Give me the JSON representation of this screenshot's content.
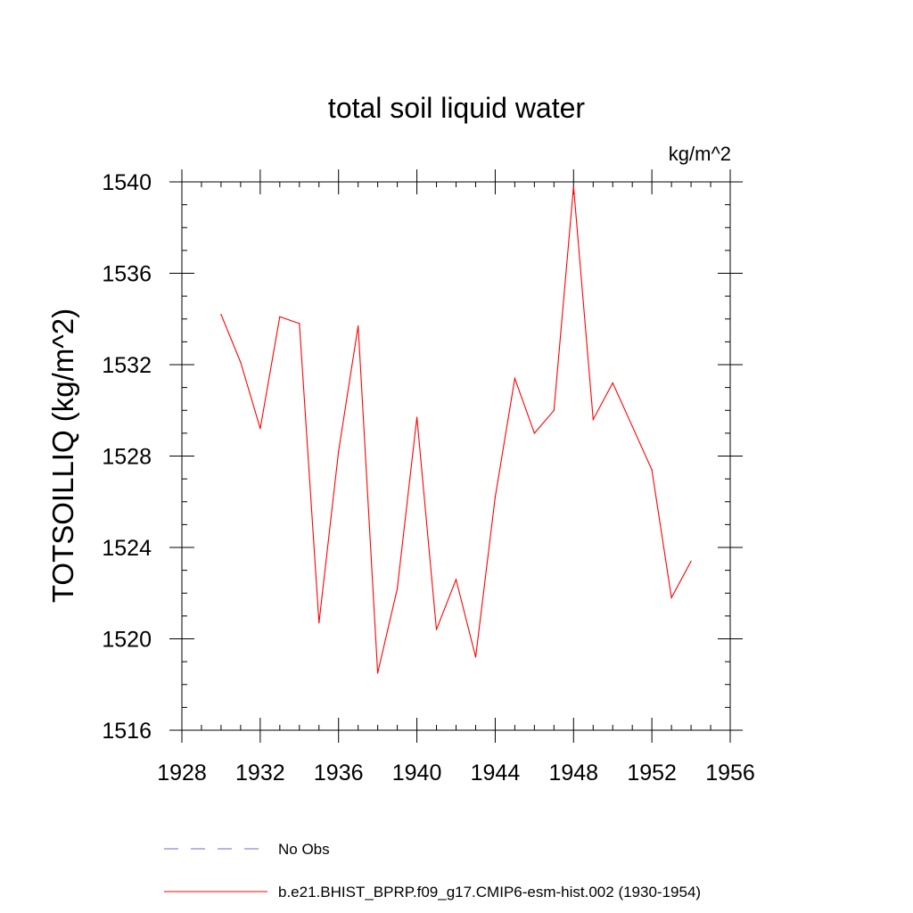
{
  "chart_data": {
    "type": "line",
    "title": "total soil liquid water",
    "units_label": "kg/m^2",
    "ylabel": "TOTSOILLIQ  (kg/m^2)",
    "xlabel": "",
    "xlim": [
      1928,
      1956
    ],
    "ylim": [
      1516,
      1540
    ],
    "xticks": [
      1928,
      1932,
      1936,
      1940,
      1944,
      1948,
      1952,
      1956
    ],
    "yticks": [
      1516,
      1520,
      1524,
      1528,
      1532,
      1536,
      1540
    ],
    "x_minor_step": 1,
    "y_minor_step": 1,
    "grid": false,
    "series": [
      {
        "name": "b.e21.BHIST_BPRP.f09_g17.CMIP6-esm-hist.002 (1930-1954)",
        "color": "#ff0000",
        "style": "solid",
        "x": [
          1930,
          1931,
          1932,
          1933,
          1934,
          1935,
          1936,
          1937,
          1938,
          1939,
          1940,
          1941,
          1942,
          1943,
          1944,
          1945,
          1946,
          1947,
          1948,
          1949,
          1950,
          1951,
          1952,
          1953,
          1954
        ],
        "values": [
          1534.2,
          1532.1,
          1529.2,
          1534.1,
          1533.8,
          1520.7,
          1528.2,
          1533.7,
          1518.5,
          1522.2,
          1529.7,
          1520.4,
          1522.6,
          1519.2,
          1526.2,
          1531.4,
          1529.0,
          1530.0,
          1539.8,
          1529.6,
          1531.2,
          1529.3,
          1527.4,
          1521.8,
          1523.4
        ]
      }
    ],
    "legend": [
      {
        "label": "No Obs",
        "color": "#6b6bd6",
        "style": "dashed"
      },
      {
        "label": "b.e21.BHIST_BPRP.f09_g17.CMIP6-esm-hist.002 (1930-1954)",
        "color": "#ff0000",
        "style": "solid"
      }
    ],
    "legend_position": "bottom"
  }
}
